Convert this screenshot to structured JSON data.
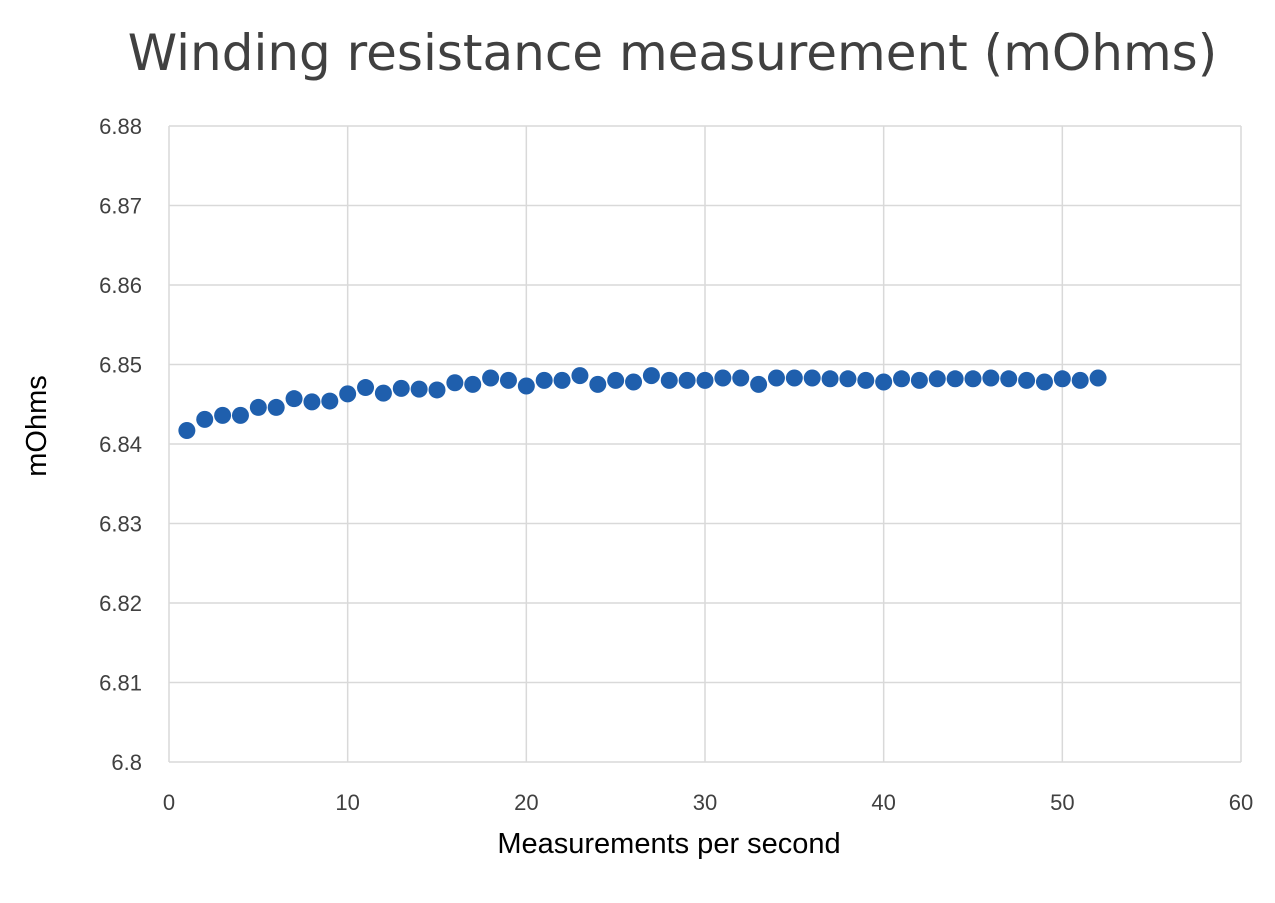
{
  "chart_data": {
    "type": "scatter",
    "title": "Winding resistance measurement (mOhms)",
    "xlabel": "Measurements per second",
    "ylabel": "mOhms",
    "xlim": [
      0,
      60
    ],
    "ylim": [
      6.8,
      6.88
    ],
    "x_ticks": [
      "0",
      "10",
      "20",
      "30",
      "40",
      "50",
      "60"
    ],
    "y_ticks": [
      "6.8",
      "6.81",
      "6.82",
      "6.83",
      "6.84",
      "6.85",
      "6.86",
      "6.87",
      "6.88"
    ],
    "grid": true,
    "marker_color": "#1F5FAD",
    "grid_color": "#D9D9D9",
    "x": [
      1,
      2,
      3,
      4,
      5,
      6,
      7,
      8,
      9,
      10,
      11,
      12,
      13,
      14,
      15,
      16,
      17,
      18,
      19,
      20,
      21,
      22,
      23,
      24,
      25,
      26,
      27,
      28,
      29,
      30,
      31,
      32,
      33,
      34,
      35,
      36,
      37,
      38,
      39,
      40,
      41,
      42,
      43,
      44,
      45,
      46,
      47,
      48,
      49,
      50,
      51,
      52
    ],
    "y": [
      6.8417,
      6.8431,
      6.8436,
      6.8436,
      6.8446,
      6.8446,
      6.8457,
      6.8453,
      6.8454,
      6.8463,
      6.8471,
      6.8464,
      6.847,
      6.8469,
      6.8468,
      6.8477,
      6.8475,
      6.8483,
      6.848,
      6.8473,
      6.848,
      6.848,
      6.8486,
      6.8475,
      6.848,
      6.8478,
      6.8486,
      6.848,
      6.848,
      6.848,
      6.8483,
      6.8483,
      6.8475,
      6.8483,
      6.8483,
      6.8483,
      6.8482,
      6.8482,
      6.848,
      6.8478,
      6.8482,
      6.848,
      6.8482,
      6.8482,
      6.8482,
      6.8483,
      6.8482,
      6.848,
      6.8478,
      6.8482,
      6.848,
      6.8483
    ]
  }
}
